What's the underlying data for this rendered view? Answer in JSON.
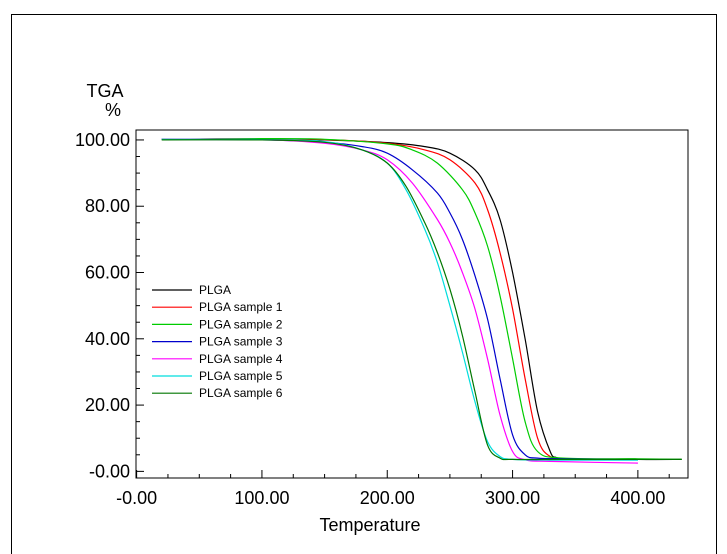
{
  "chart_data": {
    "type": "line",
    "title": "",
    "ylabel_top": "TGA",
    "ylabel_unit": "%",
    "xlabel": "Temperature",
    "xlim": [
      -0.5,
      440
    ],
    "ylim": [
      -2,
      103
    ],
    "x_ticks": [
      "-0.00",
      "100.00",
      "200.00",
      "300.00",
      "400.00"
    ],
    "x_tick_values": [
      0,
      100,
      200,
      300,
      400
    ],
    "y_ticks": [
      "-0.00",
      "20.00",
      "40.00",
      "60.00",
      "80.00",
      "100.00"
    ],
    "y_tick_values": [
      0,
      20,
      40,
      60,
      80,
      100
    ],
    "grid": false,
    "legend_position": "left",
    "series": [
      {
        "name": "PLGA",
        "color": "#000000",
        "x": [
          20,
          100,
          150,
          200,
          230,
          250,
          270,
          280,
          290,
          300,
          310,
          320,
          330,
          335,
          345,
          400,
          435
        ],
        "y": [
          100.2,
          100.3,
          100.0,
          99.2,
          98,
          96,
          91,
          85,
          76,
          60,
          40,
          18,
          6,
          4.2,
          3.8,
          3.6,
          3.6
        ]
      },
      {
        "name": "PLGA sample 1",
        "color": "#ff0000",
        "x": [
          20,
          100,
          150,
          200,
          230,
          250,
          270,
          280,
          290,
          300,
          310,
          320,
          330,
          345,
          400
        ],
        "y": [
          100.2,
          100.3,
          100.1,
          99.0,
          97,
          94,
          87,
          79,
          66,
          49,
          28,
          10,
          4.5,
          3.8,
          3.6
        ]
      },
      {
        "name": "PLGA sample 2",
        "color": "#00cc00",
        "x": [
          20,
          100,
          150,
          200,
          220,
          240,
          260,
          270,
          280,
          290,
          300,
          310,
          320,
          340,
          400,
          435
        ],
        "y": [
          100.2,
          100.4,
          100.2,
          98.8,
          97,
          93,
          85,
          78,
          68,
          53,
          34,
          15,
          6,
          4,
          3.8,
          3.6
        ]
      },
      {
        "name": "PLGA sample 3",
        "color": "#0000cc",
        "x": [
          20,
          100,
          150,
          180,
          200,
          220,
          240,
          250,
          260,
          270,
          280,
          290,
          300,
          310,
          320,
          340,
          400
        ],
        "y": [
          100.2,
          100.0,
          99.3,
          98,
          96,
          91,
          84,
          78,
          70,
          59,
          46,
          28,
          11,
          5,
          4,
          3.8,
          3.5
        ]
      },
      {
        "name": "PLGA sample 4",
        "color": "#ff00ff",
        "x": [
          20,
          100,
          150,
          180,
          200,
          220,
          240,
          250,
          260,
          270,
          280,
          290,
          300,
          310,
          330,
          400
        ],
        "y": [
          100.2,
          100.1,
          99.0,
          97,
          94,
          87,
          76,
          69,
          60,
          49,
          34,
          17,
          6,
          3.5,
          3.0,
          2.5
        ]
      },
      {
        "name": "PLGA sample 5",
        "color": "#00dddd",
        "x": [
          20,
          100,
          150,
          180,
          200,
          215,
          230,
          240,
          250,
          260,
          270,
          280,
          290,
          300,
          330,
          400
        ],
        "y": [
          100.2,
          100.1,
          99.5,
          97,
          93,
          85,
          73,
          63,
          50,
          36,
          21,
          9,
          4.5,
          3.6,
          3.4,
          3.4
        ]
      },
      {
        "name": "PLGA sample 6",
        "color": "#007700",
        "x": [
          20,
          100,
          150,
          180,
          200,
          215,
          230,
          240,
          250,
          260,
          270,
          280,
          290,
          300,
          340,
          435
        ],
        "y": [
          100.0,
          100.0,
          99.3,
          97,
          93,
          86,
          75,
          66,
          55,
          41,
          24,
          8,
          4,
          3.6,
          3.6,
          3.6
        ]
      }
    ]
  }
}
